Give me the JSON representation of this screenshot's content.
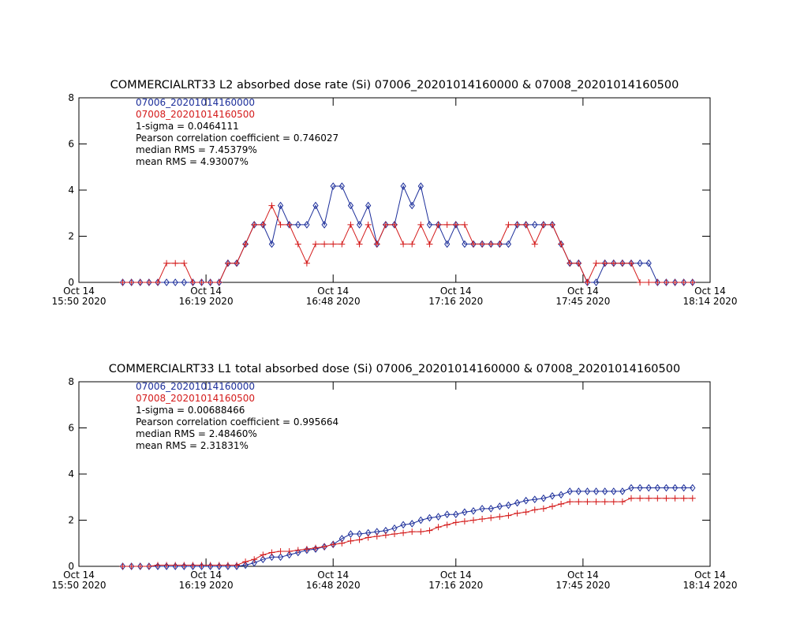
{
  "chart_data": [
    {
      "type": "line",
      "title": "COMMERCIALRT33 L2 absorbed dose rate (Si) 07006_20201014160000 & 07008_20201014160500",
      "annotations": [
        "1-sigma = 0.0464111",
        "Pearson correlation coefficient = 0.746027",
        "median RMS = 7.45379%",
        "mean RMS = 4.93007%"
      ],
      "xlim": [
        "2020-10-14 15:50",
        "2020-10-14 18:14"
      ],
      "xticks": [
        {
          "value": "2020-10-14 15:50",
          "label": "Oct 14\n15:50 2020"
        },
        {
          "value": "2020-10-14 16:19",
          "label": "Oct 14\n16:19 2020"
        },
        {
          "value": "2020-10-14 16:48",
          "label": "Oct 14\n16:48 2020"
        },
        {
          "value": "2020-10-14 17:16",
          "label": "Oct 14\n17:16 2020"
        },
        {
          "value": "2020-10-14 17:45",
          "label": "Oct 14\n17:45 2020"
        },
        {
          "value": "2020-10-14 18:14",
          "label": "Oct 14\n18:14 2020"
        }
      ],
      "ylim": [
        0,
        8
      ],
      "yticks": [
        0,
        2,
        4,
        6,
        8
      ],
      "x": [
        "2020-10-14 16:00",
        "2020-10-14 16:02",
        "2020-10-14 16:04",
        "2020-10-14 16:06",
        "2020-10-14 16:08",
        "2020-10-14 16:10",
        "2020-10-14 16:12",
        "2020-10-14 16:14",
        "2020-10-14 16:16",
        "2020-10-14 16:18",
        "2020-10-14 16:20",
        "2020-10-14 16:22",
        "2020-10-14 16:24",
        "2020-10-14 16:26",
        "2020-10-14 16:28",
        "2020-10-14 16:30",
        "2020-10-14 16:32",
        "2020-10-14 16:34",
        "2020-10-14 16:36",
        "2020-10-14 16:38",
        "2020-10-14 16:40",
        "2020-10-14 16:42",
        "2020-10-14 16:44",
        "2020-10-14 16:46",
        "2020-10-14 16:48",
        "2020-10-14 16:50",
        "2020-10-14 16:52",
        "2020-10-14 16:54",
        "2020-10-14 16:56",
        "2020-10-14 16:58",
        "2020-10-14 17:00",
        "2020-10-14 17:02",
        "2020-10-14 17:04",
        "2020-10-14 17:06",
        "2020-10-14 17:08",
        "2020-10-14 17:10",
        "2020-10-14 17:12",
        "2020-10-14 17:14",
        "2020-10-14 17:16",
        "2020-10-14 17:18",
        "2020-10-14 17:20",
        "2020-10-14 17:22",
        "2020-10-14 17:24",
        "2020-10-14 17:26",
        "2020-10-14 17:28",
        "2020-10-14 17:30",
        "2020-10-14 17:32",
        "2020-10-14 17:34",
        "2020-10-14 17:36",
        "2020-10-14 17:38",
        "2020-10-14 17:40",
        "2020-10-14 17:42",
        "2020-10-14 17:44",
        "2020-10-14 17:46",
        "2020-10-14 17:48",
        "2020-10-14 17:50",
        "2020-10-14 17:52",
        "2020-10-14 17:54",
        "2020-10-14 17:56",
        "2020-10-14 17:58",
        "2020-10-14 18:00",
        "2020-10-14 18:02",
        "2020-10-14 18:04",
        "2020-10-14 18:06",
        "2020-10-14 18:08",
        "2020-10-14 18:10"
      ],
      "series": [
        {
          "name": "07006_20201014160000",
          "color": "#1c2e9a",
          "marker": "diamond",
          "values": [
            0,
            0,
            0,
            0,
            0,
            0,
            0,
            0,
            0,
            0,
            0,
            0,
            0.83,
            0.83,
            1.66,
            2.5,
            2.5,
            1.66,
            3.33,
            2.5,
            2.5,
            2.5,
            3.33,
            2.5,
            4.17,
            4.17,
            3.33,
            2.5,
            3.33,
            1.66,
            2.5,
            2.5,
            4.17,
            3.33,
            4.17,
            2.5,
            2.5,
            1.66,
            2.5,
            1.66,
            1.66,
            1.66,
            1.66,
            1.66,
            1.66,
            2.5,
            2.5,
            2.5,
            2.5,
            2.5,
            1.66,
            0.83,
            0.83,
            0,
            0,
            0.83,
            0.83,
            0.83,
            0.83,
            0.83,
            0.83,
            0,
            0,
            0,
            0,
            0
          ]
        },
        {
          "name": "07008_20201014160500",
          "color": "#d41a1a",
          "marker": "plus",
          "values": [
            0,
            0,
            0,
            0,
            0,
            0.83,
            0.83,
            0.83,
            0,
            0,
            0,
            0,
            0.83,
            0.83,
            1.66,
            2.5,
            2.5,
            3.33,
            2.5,
            2.5,
            1.66,
            0.83,
            1.66,
            1.66,
            1.66,
            1.66,
            2.5,
            1.66,
            2.5,
            1.66,
            2.5,
            2.5,
            1.66,
            1.66,
            2.5,
            1.66,
            2.5,
            2.5,
            2.5,
            2.5,
            1.66,
            1.66,
            1.66,
            1.66,
            2.5,
            2.5,
            2.5,
            1.66,
            2.5,
            2.5,
            1.66,
            0.83,
            0.83,
            0,
            0.83,
            0.83,
            0.83,
            0.83,
            0.83,
            0,
            0,
            0,
            0,
            0,
            0,
            0
          ]
        }
      ]
    },
    {
      "type": "line",
      "title": "COMMERCIALRT33 L1 total absorbed dose (Si) 07006_20201014160000 & 07008_20201014160500",
      "annotations": [
        "1-sigma = 0.00688466",
        "Pearson correlation coefficient = 0.995664",
        "median RMS = 2.48460%",
        "mean RMS = 2.31831%"
      ],
      "xlim": [
        "2020-10-14 15:50",
        "2020-10-14 18:14"
      ],
      "xticks": [
        {
          "value": "2020-10-14 15:50",
          "label": "Oct 14\n15:50 2020"
        },
        {
          "value": "2020-10-14 16:19",
          "label": "Oct 14\n16:19 2020"
        },
        {
          "value": "2020-10-14 16:48",
          "label": "Oct 14\n16:48 2020"
        },
        {
          "value": "2020-10-14 17:16",
          "label": "Oct 14\n17:16 2020"
        },
        {
          "value": "2020-10-14 17:45",
          "label": "Oct 14\n17:45 2020"
        },
        {
          "value": "2020-10-14 18:14",
          "label": "Oct 14\n18:14 2020"
        }
      ],
      "ylim": [
        0,
        8
      ],
      "yticks": [
        0,
        2,
        4,
        6,
        8
      ],
      "x": [
        "2020-10-14 16:00",
        "2020-10-14 16:02",
        "2020-10-14 16:04",
        "2020-10-14 16:06",
        "2020-10-14 16:08",
        "2020-10-14 16:10",
        "2020-10-14 16:12",
        "2020-10-14 16:14",
        "2020-10-14 16:16",
        "2020-10-14 16:18",
        "2020-10-14 16:20",
        "2020-10-14 16:22",
        "2020-10-14 16:24",
        "2020-10-14 16:26",
        "2020-10-14 16:28",
        "2020-10-14 16:30",
        "2020-10-14 16:32",
        "2020-10-14 16:34",
        "2020-10-14 16:36",
        "2020-10-14 16:38",
        "2020-10-14 16:40",
        "2020-10-14 16:42",
        "2020-10-14 16:44",
        "2020-10-14 16:46",
        "2020-10-14 16:48",
        "2020-10-14 16:50",
        "2020-10-14 16:52",
        "2020-10-14 16:54",
        "2020-10-14 16:56",
        "2020-10-14 16:58",
        "2020-10-14 17:00",
        "2020-10-14 17:02",
        "2020-10-14 17:04",
        "2020-10-14 17:06",
        "2020-10-14 17:08",
        "2020-10-14 17:10",
        "2020-10-14 17:12",
        "2020-10-14 17:14",
        "2020-10-14 17:16",
        "2020-10-14 17:18",
        "2020-10-14 17:20",
        "2020-10-14 17:22",
        "2020-10-14 17:24",
        "2020-10-14 17:26",
        "2020-10-14 17:28",
        "2020-10-14 17:30",
        "2020-10-14 17:32",
        "2020-10-14 17:34",
        "2020-10-14 17:36",
        "2020-10-14 17:38",
        "2020-10-14 17:40",
        "2020-10-14 17:42",
        "2020-10-14 17:44",
        "2020-10-14 17:46",
        "2020-10-14 17:48",
        "2020-10-14 17:50",
        "2020-10-14 17:52",
        "2020-10-14 17:54",
        "2020-10-14 17:56",
        "2020-10-14 17:58",
        "2020-10-14 18:00",
        "2020-10-14 18:02",
        "2020-10-14 18:04",
        "2020-10-14 18:06",
        "2020-10-14 18:08",
        "2020-10-14 18:10"
      ],
      "series": [
        {
          "name": "07006_20201014160000",
          "color": "#1c2e9a",
          "marker": "diamond",
          "values": [
            0,
            0,
            0,
            0,
            0,
            0,
            0,
            0,
            0,
            0,
            0,
            0,
            0,
            0,
            0.05,
            0.15,
            0.3,
            0.4,
            0.4,
            0.5,
            0.6,
            0.7,
            0.75,
            0.85,
            0.95,
            1.2,
            1.4,
            1.4,
            1.45,
            1.5,
            1.55,
            1.65,
            1.8,
            1.85,
            2.0,
            2.1,
            2.15,
            2.25,
            2.25,
            2.35,
            2.4,
            2.5,
            2.5,
            2.6,
            2.65,
            2.75,
            2.85,
            2.9,
            2.95,
            3.05,
            3.1,
            3.25,
            3.25,
            3.25,
            3.25,
            3.25,
            3.25,
            3.25,
            3.4,
            3.4,
            3.4,
            3.4,
            3.4,
            3.4,
            3.4,
            3.4
          ]
        },
        {
          "name": "07008_20201014160500",
          "color": "#d41a1a",
          "marker": "plus",
          "values": [
            0,
            0,
            0,
            0,
            0.05,
            0.05,
            0.05,
            0.05,
            0.05,
            0.05,
            0.05,
            0.05,
            0.05,
            0.05,
            0.2,
            0.3,
            0.5,
            0.6,
            0.65,
            0.65,
            0.7,
            0.75,
            0.8,
            0.85,
            0.95,
            1.0,
            1.1,
            1.15,
            1.25,
            1.3,
            1.35,
            1.4,
            1.45,
            1.5,
            1.5,
            1.55,
            1.7,
            1.8,
            1.9,
            1.95,
            2.0,
            2.05,
            2.1,
            2.15,
            2.2,
            2.3,
            2.35,
            2.45,
            2.5,
            2.6,
            2.7,
            2.8,
            2.8,
            2.8,
            2.8,
            2.8,
            2.8,
            2.8,
            2.95,
            2.95,
            2.95,
            2.95,
            2.95,
            2.95,
            2.95,
            2.95
          ]
        }
      ]
    }
  ]
}
